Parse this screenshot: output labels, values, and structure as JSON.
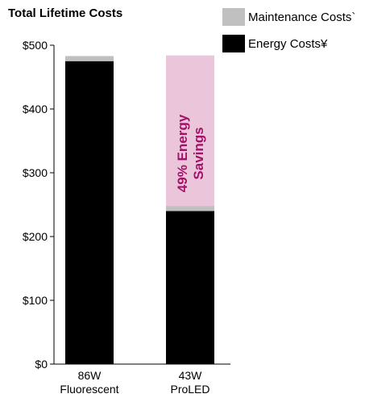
{
  "chart_data": {
    "type": "bar",
    "stacked": true,
    "title": "Total Lifetime Costs",
    "categories": [
      [
        "86W",
        "Fluorescent"
      ],
      [
        "43W",
        "ProLED"
      ]
    ],
    "series": [
      {
        "name": "Energy Costs¥",
        "color": "#000000",
        "values": [
          475,
          240
        ]
      },
      {
        "name": "Maintenance Costs`",
        "color": "#c0c0c0",
        "values": [
          8,
          8
        ]
      },
      {
        "name": "",
        "color": "#ebc5da",
        "values": [
          0,
          236
        ]
      }
    ],
    "annotation": {
      "lines": [
        "49% Energy",
        "Savings"
      ],
      "category_index": 1,
      "color": "#a4106a"
    },
    "ylim": [
      0,
      500
    ],
    "yticks": [
      0,
      100,
      200,
      300,
      400,
      500
    ],
    "ytick_labels": [
      "$0",
      "$100",
      "$200",
      "$300",
      "$400",
      "$500"
    ],
    "grid": false,
    "legend": {
      "placement": "top-right",
      "items": [
        {
          "label": "Maintenance Costs`",
          "color": "#c0c0c0"
        },
        {
          "label": "Energy Costs¥",
          "color": "#000000"
        }
      ]
    }
  }
}
